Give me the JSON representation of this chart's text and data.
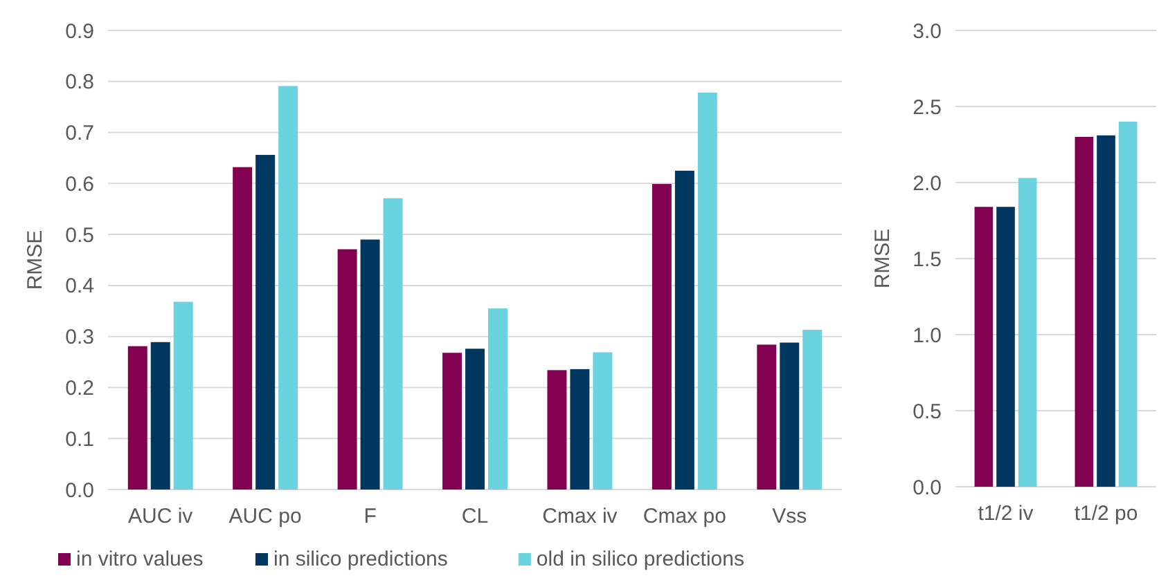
{
  "chart_data": [
    {
      "type": "bar",
      "ylabel": "RMSE",
      "categories": [
        "AUC iv",
        "AUC po",
        "F",
        "CL",
        "Cmax iv",
        "Cmax po",
        "Vss"
      ],
      "series": [
        {
          "name": "in vitro values",
          "color": "#820050",
          "values": [
            0.281,
            0.632,
            0.471,
            0.268,
            0.234,
            0.599,
            0.284
          ]
        },
        {
          "name": "in silico predictions",
          "color": "#003761",
          "values": [
            0.289,
            0.656,
            0.49,
            0.276,
            0.236,
            0.625,
            0.288
          ]
        },
        {
          "name": "old in silico predictions",
          "color": "#6ad3df",
          "values": [
            0.368,
            0.791,
            0.571,
            0.355,
            0.269,
            0.778,
            0.313
          ]
        }
      ],
      "ylim": [
        0,
        0.9
      ],
      "yticks": [
        {
          "value": 0,
          "label": "0.0"
        },
        0.1,
        0.2,
        0.3,
        0.4,
        0.5,
        0.6,
        0.7,
        0.8,
        0.9
      ],
      "grid": "y",
      "legend": "bottom"
    },
    {
      "type": "bar",
      "ylabel": "RMSE",
      "categories": [
        "t1/2 iv",
        "t1/2 po"
      ],
      "series": [
        {
          "color": "#820050",
          "values": [
            1.84,
            2.3
          ]
        },
        {
          "color": "#003761",
          "values": [
            1.84,
            2.31
          ]
        },
        {
          "color": "#6ad3df",
          "values": [
            2.03,
            2.4
          ]
        }
      ],
      "ylim": [
        0,
        3
      ],
      "yticks": [
        {
          "value": 0,
          "label": "0.0"
        },
        {
          "value": 0.5,
          "label": "0.5"
        },
        {
          "value": 1,
          "label": "1.0"
        },
        {
          "value": 1.5,
          "label": "1.5"
        },
        {
          "value": 2,
          "label": "2.0"
        },
        {
          "value": 2.5,
          "label": "2.5"
        },
        {
          "value": 3,
          "label": "3.0"
        }
      ],
      "grid": "y"
    }
  ]
}
